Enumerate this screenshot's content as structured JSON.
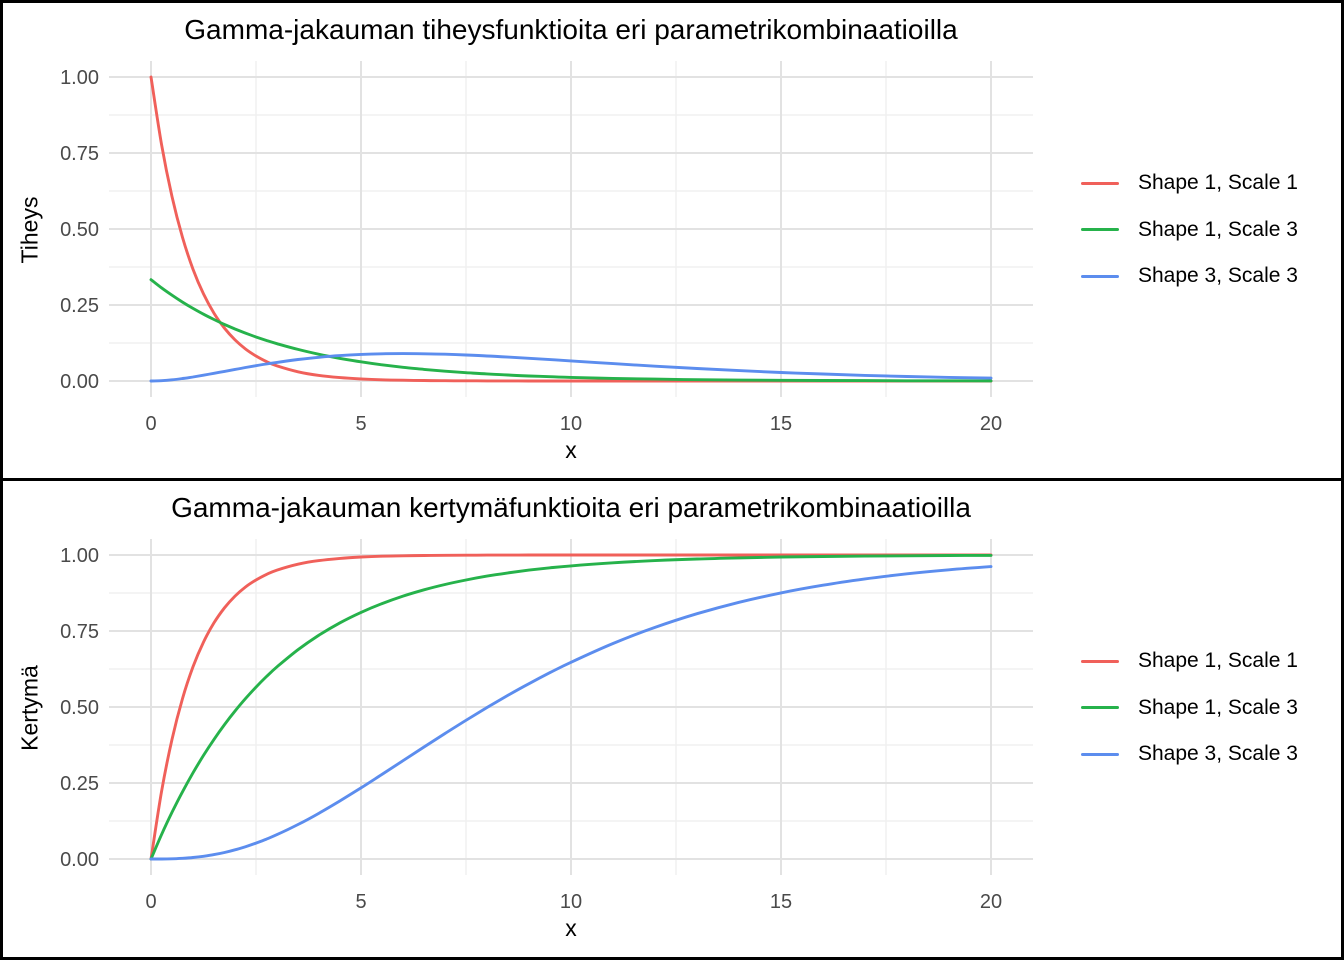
{
  "figure": {
    "background": "#FFFFFF",
    "border_color": "#000000",
    "grid_major_color": "#E2E2E2",
    "grid_minor_color": "#F0F0F0",
    "tick_label_color": "#4A4A4A"
  },
  "chart_data": [
    {
      "type": "line",
      "title": "Gamma-jakauman tiheysfunktioita eri parametrikombinaatioilla",
      "xlabel": "x",
      "ylabel": "Tiheys",
      "x_ticks": [
        0,
        5,
        10,
        15,
        20
      ],
      "y_tick_labels": [
        "0.00",
        "0.25",
        "0.50",
        "0.75",
        "1.00"
      ],
      "xlim": [
        0,
        20
      ],
      "ylim": [
        0,
        1
      ],
      "grid": "major+minor",
      "legend_position": "right",
      "x": [
        0,
        0.25,
        0.5,
        0.75,
        1,
        1.25,
        1.5,
        1.75,
        2,
        2.25,
        2.5,
        2.75,
        3,
        3.5,
        4,
        4.5,
        5,
        5.5,
        6,
        6.5,
        7,
        7.5,
        8,
        8.5,
        9,
        9.5,
        10,
        11,
        12,
        13,
        14,
        15,
        16,
        17,
        18,
        19,
        20
      ],
      "series": [
        {
          "name": "Shape 1, Scale 1",
          "color": "#F0605A",
          "values": [
            1,
            0.7788,
            0.6065,
            0.4724,
            0.3679,
            0.2865,
            0.2231,
            0.1738,
            0.1353,
            0.1054,
            0.0821,
            0.0639,
            0.0498,
            0.0302,
            0.0183,
            0.0111,
            0.0067,
            0.0041,
            0.0025,
            0.0015,
            0.0009,
            0.0006,
            0.0003,
            0.0002,
            0.0001,
            0.0001,
            0,
            0,
            0,
            0,
            0,
            0,
            0,
            0,
            0,
            0,
            0
          ]
        },
        {
          "name": "Shape 1, Scale 3",
          "color": "#26B24B",
          "values": [
            0.3333,
            0.3067,
            0.2822,
            0.2596,
            0.2388,
            0.2197,
            0.2022,
            0.186,
            0.1711,
            0.1575,
            0.1449,
            0.1333,
            0.1226,
            0.1038,
            0.0879,
            0.0744,
            0.063,
            0.0533,
            0.0451,
            0.0382,
            0.0323,
            0.0274,
            0.0232,
            0.0196,
            0.0166,
            0.014,
            0.0119,
            0.0085,
            0.0061,
            0.0044,
            0.0031,
            0.0022,
            0.0016,
            0.0012,
            0.0008,
            0.0006,
            0.0004
          ]
        },
        {
          "name": "Shape 3, Scale 3",
          "color": "#5C8DEE",
          "values": [
            0,
            0.0011,
            0.0039,
            0.0081,
            0.0133,
            0.0191,
            0.0253,
            0.0317,
            0.038,
            0.0443,
            0.0503,
            0.056,
            0.0613,
            0.0706,
            0.0781,
            0.0837,
            0.0874,
            0.0896,
            0.0902,
            0.0896,
            0.088,
            0.0855,
            0.0823,
            0.0787,
            0.0747,
            0.0704,
            0.066,
            0.0573,
            0.0488,
            0.041,
            0.0341,
            0.0281,
            0.0229,
            0.0185,
            0.0149,
            0.0119,
            0.0094
          ]
        }
      ]
    },
    {
      "type": "line",
      "title": "Gamma-jakauman kertymäfunktioita eri parametrikombinaatioilla",
      "xlabel": "x",
      "ylabel": "Kertymä",
      "x_ticks": [
        0,
        5,
        10,
        15,
        20
      ],
      "y_tick_labels": [
        "0.00",
        "0.25",
        "0.50",
        "0.75",
        "1.00"
      ],
      "xlim": [
        0,
        20
      ],
      "ylim": [
        0,
        1
      ],
      "grid": "major+minor",
      "legend_position": "right",
      "x": [
        0,
        0.25,
        0.5,
        0.75,
        1,
        1.25,
        1.5,
        1.75,
        2,
        2.25,
        2.5,
        2.75,
        3,
        3.5,
        4,
        4.5,
        5,
        5.5,
        6,
        6.5,
        7,
        7.5,
        8,
        8.5,
        9,
        9.5,
        10,
        11,
        12,
        13,
        14,
        15,
        16,
        17,
        18,
        19,
        20
      ],
      "series": [
        {
          "name": "Shape 1, Scale 1",
          "color": "#F0605A",
          "values": [
            0,
            0.2212,
            0.3935,
            0.5276,
            0.6321,
            0.7135,
            0.7769,
            0.8262,
            0.8647,
            0.8946,
            0.9179,
            0.9361,
            0.9502,
            0.9698,
            0.9817,
            0.9889,
            0.9933,
            0.9959,
            0.9975,
            0.9985,
            0.9991,
            0.9994,
            0.9997,
            0.9998,
            0.9999,
            0.9999,
            1,
            1,
            1,
            1,
            1,
            1,
            1,
            1,
            1,
            1,
            1
          ]
        },
        {
          "name": "Shape 1, Scale 3",
          "color": "#26B24B",
          "values": [
            0,
            0.08,
            0.1535,
            0.2212,
            0.2835,
            0.3408,
            0.3935,
            0.442,
            0.4866,
            0.5276,
            0.5654,
            0.6002,
            0.6321,
            0.6886,
            0.7364,
            0.7769,
            0.8111,
            0.8401,
            0.8647,
            0.8854,
            0.903,
            0.9179,
            0.9305,
            0.9412,
            0.9502,
            0.9579,
            0.9643,
            0.9744,
            0.9817,
            0.9869,
            0.9906,
            0.9933,
            0.9952,
            0.9965,
            0.9975,
            0.9982,
            0.9987
          ]
        },
        {
          "name": "Shape 3, Scale 3",
          "color": "#5C8DEE",
          "values": [
            0,
            0.0001,
            0.0007,
            0.0022,
            0.0048,
            0.0089,
            0.0144,
            0.0215,
            0.0302,
            0.0405,
            0.0523,
            0.0656,
            0.0803,
            0.1134,
            0.1506,
            0.1912,
            0.234,
            0.2783,
            0.3233,
            0.3683,
            0.4128,
            0.4562,
            0.4982,
            0.5385,
            0.5768,
            0.6131,
            0.6472,
            0.7088,
            0.7619,
            0.8068,
            0.8443,
            0.8753,
            0.9008,
            0.9214,
            0.938,
            0.9513,
            0.962
          ]
        }
      ]
    }
  ]
}
